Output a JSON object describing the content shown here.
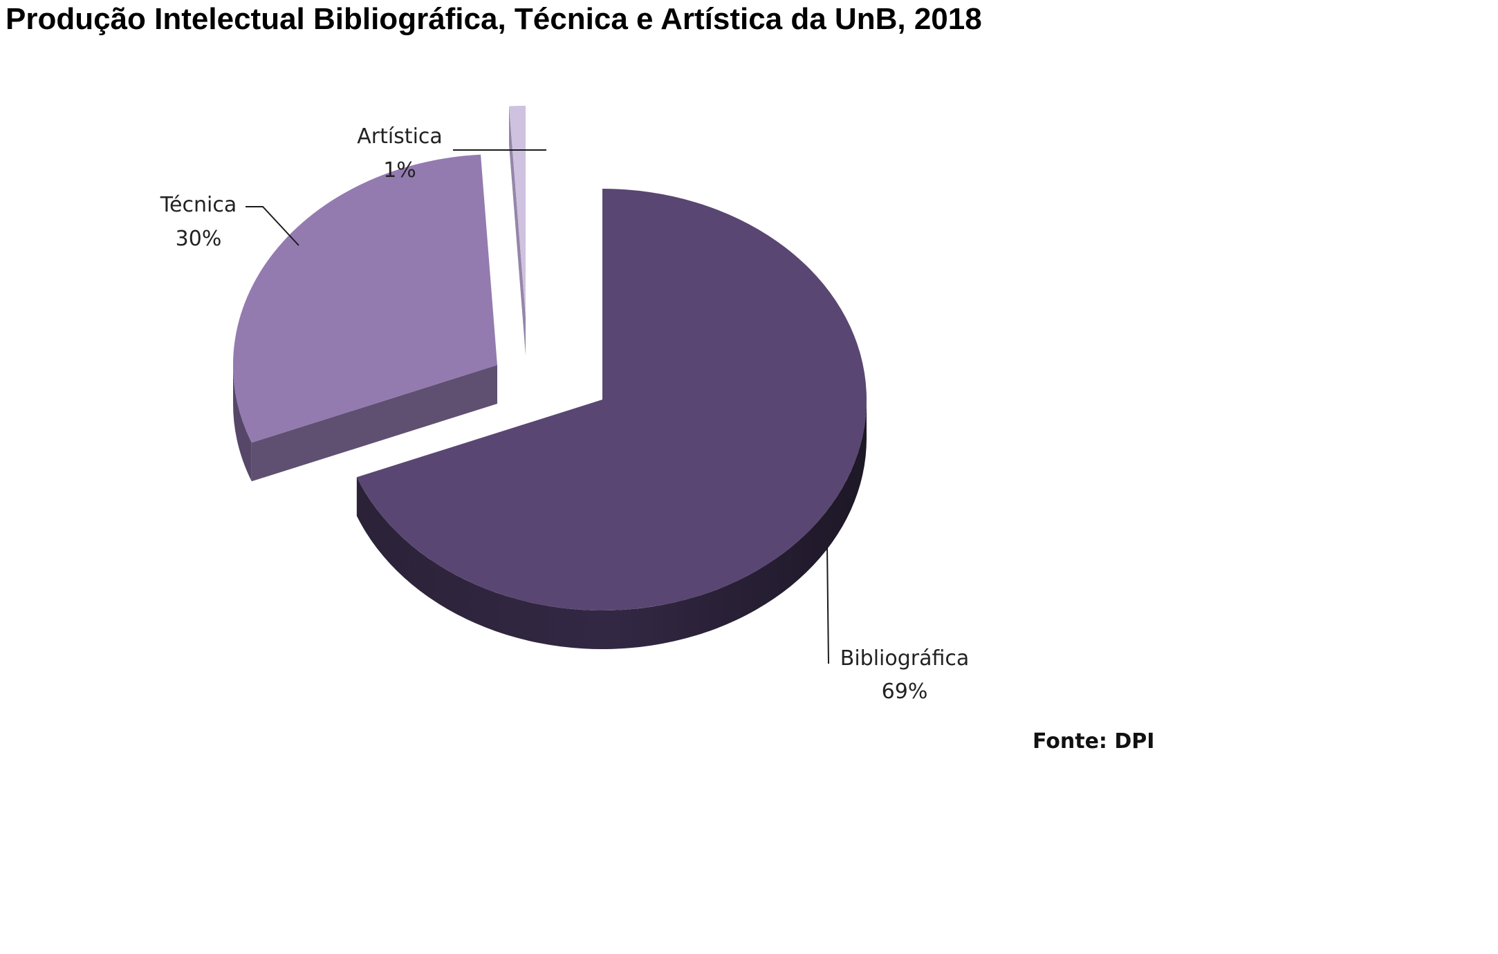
{
  "chart_data": {
    "type": "pie",
    "title": "Produção Intelectual Bibliográfica, Técnica e Artística da UnB, 2018",
    "source": "Fonte: DPI",
    "slices": [
      {
        "label": "Bibliográfica",
        "value": 69,
        "value_label": "69%",
        "color": "#5A4672"
      },
      {
        "label": "Técnica",
        "value": 30,
        "value_label": "30%",
        "color": "#937BB0"
      },
      {
        "label": "Artística",
        "value": 1,
        "value_label": "1%",
        "color": "#CFC1E0"
      }
    ],
    "exploded": true,
    "three_d": true
  }
}
